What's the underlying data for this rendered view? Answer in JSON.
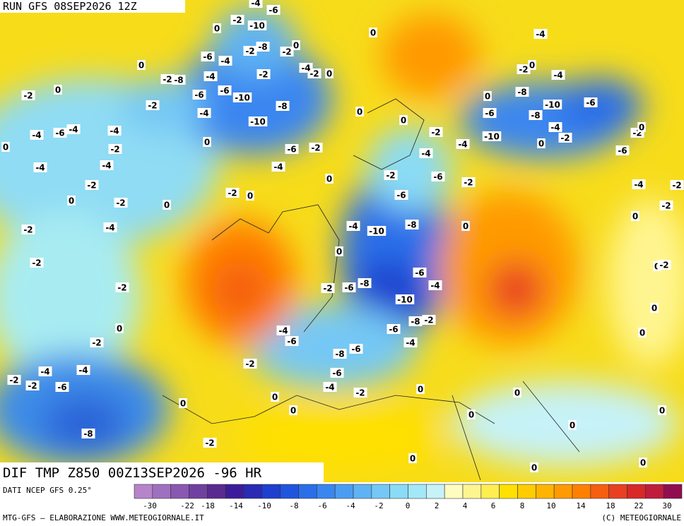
{
  "header": {
    "run": "RUN GFS 08SEP2026 12Z"
  },
  "map": {
    "title": "DIF TMP Z850 00Z13SEP2026 -96 HR",
    "contour_labels": [
      -2,
      0,
      -4,
      -6,
      -4,
      -4,
      -2,
      -4,
      -4,
      -2,
      0,
      -2,
      0,
      0,
      -2,
      -2,
      0,
      -2,
      -4,
      -2,
      -2,
      0,
      -2,
      -4,
      -4,
      -2,
      -2,
      -6,
      -8,
      0,
      -2,
      -8,
      -6,
      -4,
      -4,
      -6,
      -6,
      -4,
      -10,
      -10,
      -8,
      -6,
      -2,
      -4,
      0,
      -2,
      0,
      -2,
      0,
      -10,
      -2,
      -8,
      -2,
      -2,
      -6,
      -4,
      -2,
      0,
      -4,
      0,
      0,
      0,
      0,
      -2,
      -4,
      -6,
      -4,
      -2,
      0,
      -6,
      -2,
      0,
      -6,
      -8,
      -10,
      -8,
      -10,
      -4,
      0,
      -2,
      -6,
      -4,
      -2,
      0,
      -4,
      -2,
      0,
      -6,
      -4,
      -2,
      0,
      -2,
      -10,
      -8,
      -4,
      0,
      0,
      -6,
      -4,
      -10,
      -8,
      -6,
      -2,
      -8,
      -2,
      -6,
      -4,
      -4,
      -6,
      -8,
      -6,
      -2,
      -6,
      -4,
      -2,
      0,
      0,
      0,
      0,
      0,
      0,
      0,
      0,
      0,
      -2,
      0,
      0,
      0,
      0
    ]
  },
  "legend": {
    "source": "DATI NCEP GFS 0.25°",
    "ticks": [
      -30,
      -22,
      -18,
      -14,
      -10,
      -8,
      -6,
      -4,
      -2,
      0,
      2,
      4,
      6,
      8,
      10,
      14,
      18,
      22,
      30
    ],
    "colors": [
      "#b784cc",
      "#a070c0",
      "#8a58b0",
      "#7040a0",
      "#5a2a90",
      "#3c1c9a",
      "#2a2ab4",
      "#1f3fcf",
      "#1f55dd",
      "#2a6ee8",
      "#3a86f0",
      "#4b9df2",
      "#5fb3f4",
      "#74c8f5",
      "#8adbf6",
      "#a3e8f7",
      "#c6f2f8",
      "#fffcc0",
      "#fff590",
      "#ffee50",
      "#ffe000",
      "#ffcc00",
      "#ffb400",
      "#ff9a00",
      "#ff7f00",
      "#f45f10",
      "#e84020",
      "#d82828",
      "#c01c3c",
      "#900e50"
    ]
  },
  "footer": {
    "left": "MTG-GFS — ELABORAZIONE WWW.METEOGIORNALE.IT",
    "right": "(C) METEOGIORNALE"
  }
}
